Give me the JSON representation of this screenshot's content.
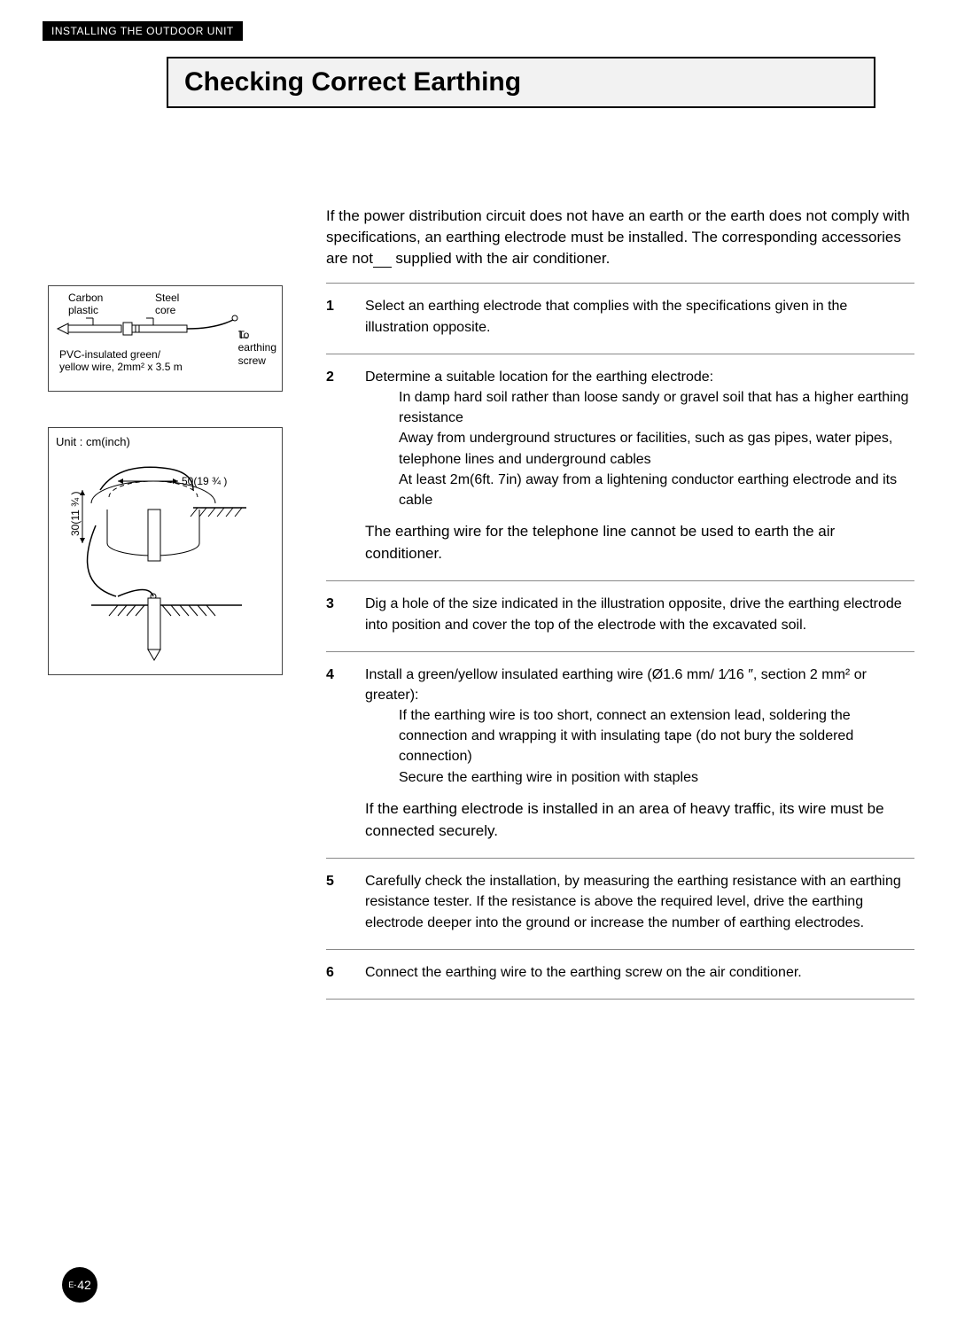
{
  "section_header": "INSTALLING THE OUTDOOR UNIT",
  "title": "Checking Correct Earthing",
  "intro_pre": "If the power distribution circuit does not have an earth or the earth does not comply with specifications, an earthing electrode must be installed. The corresponding accessories are not",
  "intro_post": " supplied with the air conditioner.",
  "diagram1": {
    "carbon_plastic": "Carbon\nplastic",
    "steel_core": "Steel\ncore",
    "to_earthing_screw": "To\nearthing\nscrew",
    "pvc_wire": "PVC-insulated green/\nyellow wire, 2mm² x 3.5 m"
  },
  "diagram2": {
    "unit_label": "Unit : cm(inch)",
    "dim_h": "50(19 ¾ )",
    "dim_v": "30(11 ¾ )"
  },
  "steps": [
    {
      "num": "1",
      "body": "Select an earthing electrode that complies with the specifications given in the illustration opposite."
    },
    {
      "num": "2",
      "body": "Determine a suitable location for the earthing electrode:",
      "sub": [
        "In damp hard soil rather than loose sandy or gravel soil that has a higher earthing resistance",
        "Away from underground structures or facilities, such as gas pipes, water pipes, telephone lines and underground cables",
        "At least 2m(6ft. 7in) away from a lightening conductor earthing electrode and its cable"
      ],
      "note": "The earthing wire for the telephone line cannot be used to earth the air conditioner."
    },
    {
      "num": "3",
      "body": "Dig a hole of the size indicated in the illustration opposite, drive the earthing electrode into position and cover the top of the electrode with the excavated soil."
    },
    {
      "num": "4",
      "body": "Install a green/yellow insulated earthing wire (Ø1.6 mm/ 1⁄16 ″, section 2 mm² or greater):",
      "sub": [
        "If the earthing wire is too short, connect an extension lead, soldering the connection and wrapping it with insulating tape (do not bury the soldered connection)",
        "Secure the earthing wire in position with staples"
      ],
      "note": "If the earthing electrode is installed in an area of heavy traffic, its wire must be connected securely."
    },
    {
      "num": "5",
      "body": "Carefully check the installation, by measuring the earthing resistance with an earthing resistance tester. If the resistance is above the required level, drive the earthing electrode deeper into the ground or increase the number of earthing electrodes."
    },
    {
      "num": "6",
      "body": "Connect the earthing wire to the earthing screw on the air conditioner."
    }
  ],
  "page_number_prefix": "E-",
  "page_number": "42",
  "colors": {
    "page_bg": "#ffffff",
    "text": "#000000",
    "title_bg": "#f2f2f2",
    "rule": "#888888"
  }
}
